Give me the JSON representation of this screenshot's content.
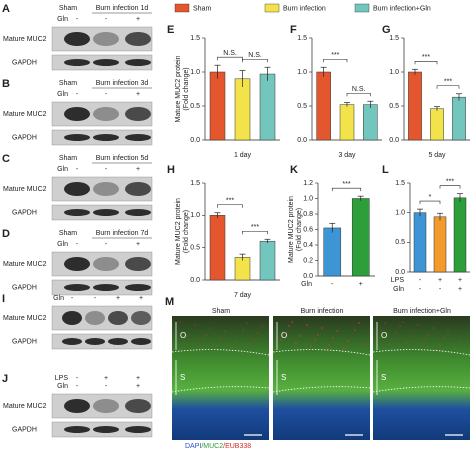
{
  "legend": [
    {
      "name": "Sham",
      "color": "#e4572e"
    },
    {
      "name": "Burn infection",
      "color": "#f3e34a"
    },
    {
      "name": "Burn infection+Gln",
      "color": "#72c6bd"
    }
  ],
  "blots": [
    {
      "letter": "A",
      "header": [
        "Sham",
        "Burn infection 1d"
      ],
      "rows": [
        {
          "label": "Gln",
          "signs": [
            "-",
            "-",
            "+"
          ]
        }
      ],
      "bands": [
        "Mature MUC2",
        "GAPDH"
      ]
    },
    {
      "letter": "B",
      "header": [
        "Sham",
        "Burn infection 3d"
      ],
      "rows": [
        {
          "label": "Gln",
          "signs": [
            "-",
            "-",
            "+"
          ]
        }
      ],
      "bands": [
        "Mature MUC2",
        "GAPDH"
      ]
    },
    {
      "letter": "C",
      "header": [
        "Sham",
        "Burn infection 5d"
      ],
      "rows": [
        {
          "label": "Gln",
          "signs": [
            "-",
            "-",
            "+"
          ]
        }
      ],
      "bands": [
        "Mature MUC2",
        "GAPDH"
      ]
    },
    {
      "letter": "D",
      "header": [
        "Sham",
        "Burn infection 7d"
      ],
      "rows": [
        {
          "label": "Gln",
          "signs": [
            "-",
            "-",
            "+"
          ]
        }
      ],
      "bands": [
        "Mature MUC2",
        "GAPDH"
      ]
    },
    {
      "letter": "I",
      "header": [],
      "rows": [
        {
          "label": "Gln",
          "signs": [
            "-",
            "-",
            "+",
            "+"
          ]
        }
      ],
      "bands": [
        "Mature MUC2",
        "GAPDH"
      ]
    },
    {
      "letter": "J",
      "header": [],
      "rows": [
        {
          "label": "LPS",
          "signs": [
            "-",
            "+",
            "+"
          ]
        },
        {
          "label": "Gln",
          "signs": [
            "-",
            "-",
            "+"
          ]
        }
      ],
      "bands": [
        "Mature MUC2",
        "GAPDH"
      ]
    }
  ],
  "chart_data": [
    {
      "type": "bar",
      "letter": "E",
      "ylabel": [
        "Mature MUC2 protein",
        "(Fold change)"
      ],
      "xlabel": "1 day",
      "values": [
        1,
        0.9,
        0.97
      ],
      "errors": [
        0.1,
        0.12,
        0.1
      ],
      "colors": [
        "#e4572e",
        "#f3e34a",
        "#72c6bd"
      ],
      "ylim": [
        0,
        1.5
      ],
      "yticks": [
        {
          "value": 0,
          "label": "0.0"
        },
        0.5,
        {
          "value": 1,
          "label": "1.0"
        },
        1.5
      ],
      "annotations": [
        "N.S.",
        "N.S."
      ]
    },
    {
      "type": "bar",
      "letter": "F",
      "xlabel": "3 day",
      "values": [
        1,
        0.52,
        0.52
      ],
      "errors": [
        0.07,
        0.03,
        0.05
      ],
      "colors": [
        "#e4572e",
        "#f3e34a",
        "#72c6bd"
      ],
      "ylim": [
        0,
        1.5
      ],
      "yticks": [
        {
          "value": 0,
          "label": "0.0"
        },
        0.5,
        {
          "value": 1,
          "label": "1.0"
        },
        1.5
      ],
      "annotations": [
        "***",
        "N.S."
      ]
    },
    {
      "type": "bar",
      "letter": "G",
      "xlabel": "5 day",
      "values": [
        1,
        0.46,
        0.63
      ],
      "errors": [
        0.04,
        0.03,
        0.05
      ],
      "colors": [
        "#e4572e",
        "#f3e34a",
        "#72c6bd"
      ],
      "ylim": [
        0,
        1.5
      ],
      "yticks": [
        {
          "value": 0,
          "label": "0.0"
        },
        0.5,
        {
          "value": 1,
          "label": "1.0"
        },
        1.5
      ],
      "annotations": [
        "***",
        "***"
      ]
    },
    {
      "type": "bar",
      "letter": "H",
      "ylabel": [
        "Mature MUC2 protein",
        "(Fold change)"
      ],
      "xlabel": "7 day",
      "values": [
        1,
        0.35,
        0.6
      ],
      "errors": [
        0.04,
        0.05,
        0.03
      ],
      "colors": [
        "#e4572e",
        "#f3e34a",
        "#72c6bd"
      ],
      "ylim": [
        0,
        1.5
      ],
      "yticks": [
        {
          "value": 0,
          "label": "0.0"
        },
        0.5,
        {
          "value": 1,
          "label": "1.0"
        },
        1.5
      ],
      "annotations": [
        "***",
        "***"
      ]
    },
    {
      "type": "bar",
      "letter": "K",
      "ylabel": [
        "Mature MUC2 protein",
        "(Fold change)"
      ],
      "conditions": [
        {
          "label": "Gln",
          "signs": [
            "-",
            "+"
          ]
        }
      ],
      "values": [
        0.62,
        1
      ],
      "errors": [
        0.06,
        0.03
      ],
      "colors": [
        "#3d95d6",
        "#2e9e3a"
      ],
      "ylim": [
        0,
        1.2
      ],
      "yticks": [
        {
          "value": 0,
          "label": "0.0"
        },
        0.2,
        0.4,
        0.6,
        0.8,
        {
          "value": 1,
          "label": "1.0"
        },
        1.2
      ],
      "annotations": [
        "***"
      ]
    },
    {
      "type": "bar",
      "letter": "L",
      "conditions": [
        {
          "label": "LPS",
          "signs": [
            "-",
            "+",
            "+"
          ]
        },
        {
          "label": "Gln",
          "signs": [
            "-",
            "-",
            "+"
          ]
        }
      ],
      "values": [
        1,
        0.93,
        1.25
      ],
      "errors": [
        0.06,
        0.06,
        0.07
      ],
      "colors": [
        "#3d95d6",
        "#f29a2b",
        "#2e9e3a"
      ],
      "ylim": [
        0,
        1.5
      ],
      "yticks": [
        {
          "value": 0,
          "label": "0.0"
        },
        0.5,
        {
          "value": 1,
          "label": "1.0"
        },
        1.5
      ],
      "annotations": [
        "*",
        "***"
      ]
    }
  ],
  "microscopy": {
    "letter": "M",
    "titles": [
      "Sham",
      "Burn infection",
      "Burn infection+Gln"
    ],
    "layers": [
      "O",
      "S"
    ],
    "stain": [
      "DAPI",
      "/MUC2",
      "/EUB338"
    ]
  }
}
